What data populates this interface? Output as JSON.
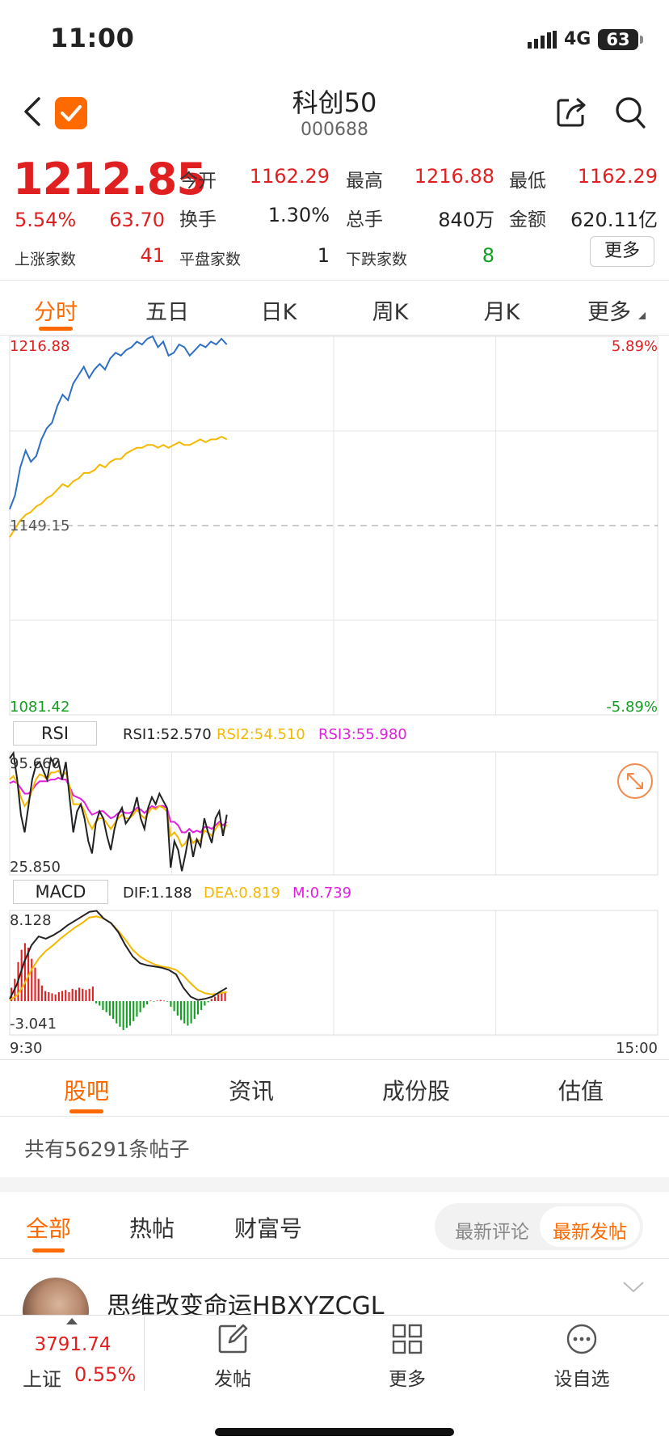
{
  "status": {
    "time": "11:00",
    "network": "4G",
    "battery": "63"
  },
  "header": {
    "title": "科创50",
    "code": "000688"
  },
  "quote": {
    "price": "1212.85",
    "change_pct": "5.54%",
    "change_abs": "63.70",
    "rows": [
      [
        {
          "label": "今开",
          "value": "1162.29",
          "color": "red"
        },
        {
          "label": "最高",
          "value": "1216.88",
          "color": "red"
        },
        {
          "label": "最低",
          "value": "1162.29",
          "color": "red"
        }
      ],
      [
        {
          "label": "换手",
          "value": "1.30%",
          "color": "dark"
        },
        {
          "label": "总手",
          "value": "840万",
          "color": "dark"
        },
        {
          "label": "金额",
          "value": "620.11亿",
          "color": "dark"
        }
      ]
    ],
    "breadth": [
      {
        "label": "上涨家数",
        "value": "41",
        "color": "red"
      },
      {
        "label": "平盘家数",
        "value": "1",
        "color": "dark"
      },
      {
        "label": "下跌家数",
        "value": "8",
        "color": "green"
      }
    ],
    "more_label": "更多"
  },
  "chart_tabs": [
    "分时",
    "五日",
    "日K",
    "周K",
    "月K",
    "更多"
  ],
  "colors": {
    "accent": "#ff6a00",
    "up": "#e02020",
    "down": "#12a020",
    "price_line": "#2f6fc4",
    "avg_line": "#f5b800",
    "rsi3": "#e020e0"
  },
  "chart_data": [
    {
      "type": "line",
      "name": "intraday",
      "y_top_label": "1216.88",
      "y_bottom_label": "1081.42",
      "pct_top_label": "5.89%",
      "pct_bottom_label": "-5.89%",
      "prev_close_label": "1149.15",
      "ylim": [
        1081.42,
        1216.88
      ],
      "prev_close": 1149.15,
      "x_start_label": "9:30",
      "x_end_label": "15:00",
      "series": [
        {
          "values": [
            1155,
            1160,
            1170,
            1176,
            1172,
            1174,
            1180,
            1184,
            1186,
            1192,
            1196,
            1194,
            1200,
            1203,
            1206,
            1202,
            1205,
            1207,
            1205,
            1209,
            1211,
            1210,
            1212,
            1213,
            1215,
            1214,
            1216,
            1216.88,
            1213,
            1215,
            1210,
            1211,
            1214,
            1213,
            1210,
            1212,
            1214,
            1213,
            1215,
            1214,
            1216,
            1214
          ]
        },
        {
          "values": [
            1145,
            1148,
            1151,
            1153,
            1154,
            1156,
            1157,
            1159,
            1160,
            1162,
            1164,
            1163,
            1165,
            1166,
            1168,
            1168,
            1169,
            1171,
            1170,
            1172,
            1173,
            1173,
            1175,
            1176,
            1177,
            1177,
            1178,
            1178,
            1177,
            1178,
            1177,
            1178,
            1179,
            1178,
            1178,
            1179,
            1180,
            1179,
            1180,
            1180,
            1181,
            1180
          ]
        }
      ],
      "x_total": 241
    },
    {
      "type": "line",
      "name": "RSI",
      "label": "RSI",
      "rsi1": "RSI1:52.570",
      "rsi2": "RSI2:54.510",
      "rsi3": "RSI3:55.980",
      "y_top_label": "95.660",
      "y_bottom_label": "25.850",
      "ylim": [
        25.85,
        95.66
      ],
      "x_total": 241,
      "series": [
        {
          "values": [
            92,
            95,
            80,
            60,
            50,
            65,
            80,
            88,
            90,
            85,
            80,
            92,
            88,
            91,
            80,
            90,
            70,
            50,
            62,
            66,
            58,
            45,
            38,
            55,
            62,
            58,
            48,
            40,
            52,
            60,
            64,
            55,
            58,
            62,
            70,
            58,
            52,
            64,
            70,
            66,
            72,
            68,
            64,
            30,
            45,
            40,
            28,
            38,
            50,
            36,
            46,
            42,
            58,
            50,
            44,
            58,
            62,
            48,
            60
          ]
        },
        {
          "values": [
            80,
            82,
            78,
            70,
            65,
            68,
            74,
            80,
            83,
            82,
            80,
            84,
            84,
            85,
            82,
            84,
            76,
            66,
            66,
            66,
            62,
            56,
            52,
            56,
            58,
            58,
            55,
            52,
            55,
            58,
            60,
            58,
            58,
            60,
            63,
            60,
            58,
            61,
            64,
            63,
            65,
            64,
            62,
            48,
            50,
            47,
            42,
            44,
            48,
            44,
            46,
            45,
            51,
            50,
            48,
            52,
            55,
            51,
            54.51
          ]
        },
        {
          "values": [
            78,
            79,
            78,
            75,
            72,
            72,
            74,
            77,
            79,
            79,
            79,
            80,
            80,
            81,
            80,
            80,
            76,
            71,
            70,
            69,
            67,
            63,
            60,
            61,
            62,
            62,
            60,
            58,
            59,
            61,
            62,
            61,
            61,
            62,
            64,
            63,
            61,
            63,
            65,
            64,
            65,
            65,
            64,
            56,
            56,
            54,
            50,
            50,
            52,
            50,
            51,
            50,
            53,
            53,
            52,
            54,
            56,
            54,
            55.98
          ]
        }
      ]
    },
    {
      "type": "bar",
      "name": "MACD",
      "label": "MACD",
      "dif": "DIF:1.188",
      "dea": "DEA:0.819",
      "m": "M:0.739",
      "y_top_label": "8.128",
      "y_bottom_label": "-3.041",
      "ylim": [
        -3.041,
        8.128
      ],
      "x_total": 241,
      "dif_values": [
        0.2,
        1.5,
        3.5,
        5.0,
        5.8,
        5.6,
        5.9,
        6.3,
        6.8,
        7.2,
        7.6,
        8.0,
        8.1,
        7.4,
        7.0,
        6.2,
        5.0,
        4.0,
        3.4,
        3.2,
        3.1,
        3.0,
        2.8,
        2.4,
        1.2,
        0.4,
        0.1,
        0.2,
        0.4,
        0.8,
        1.188
      ],
      "dea_values": [
        0.1,
        0.5,
        1.5,
        2.8,
        3.8,
        4.5,
        5.0,
        5.6,
        6.1,
        6.6,
        7.0,
        7.5,
        7.6,
        7.4,
        7.0,
        6.3,
        5.5,
        4.6,
        4.0,
        3.6,
        3.3,
        3.1,
        3.0,
        2.8,
        2.3,
        1.6,
        1.0,
        0.7,
        0.6,
        0.7,
        0.819
      ],
      "bars": [
        1.2,
        2.0,
        3.5,
        4.6,
        5.2,
        4.8,
        3.8,
        3.0,
        2.0,
        1.4,
        0.9,
        0.8,
        0.7,
        0.6,
        0.8,
        0.9,
        1.0,
        0.8,
        1.1,
        1.0,
        1.2,
        1.1,
        1.0,
        1.1,
        1.3,
        -0.2,
        -0.4,
        -0.8,
        -1.0,
        -1.3,
        -1.6,
        -2.0,
        -2.3,
        -2.6,
        -2.4,
        -2.2,
        -1.8,
        -1.4,
        -1.0,
        -0.6,
        -0.3,
        0.05,
        -0.05,
        0.05,
        0.1,
        0.05,
        -0.05,
        -0.5,
        -0.9,
        -1.3,
        -1.7,
        -2.0,
        -2.2,
        -2.0,
        -1.6,
        -1.2,
        -0.8,
        -0.4,
        -0.1,
        0.2,
        0.4,
        0.6,
        0.7,
        0.739
      ]
    }
  ],
  "sub_tabs": [
    "股吧",
    "资讯",
    "成份股",
    "估值"
  ],
  "post_count": "共有56291条帖子",
  "feed_tabs": [
    "全部",
    "热帖",
    "财富号"
  ],
  "sort": {
    "latest_comment": "最新评论",
    "latest_post": "最新发帖"
  },
  "first_post": {
    "author": "思维改变命运HBXYZCGL"
  },
  "bottom": {
    "index_value": "3791.74",
    "index_name": "上证",
    "index_pct": "0.55%",
    "items": [
      {
        "label": "发帖",
        "icon": "edit-icon"
      },
      {
        "label": "更多",
        "icon": "grid-icon"
      },
      {
        "label": "设自选",
        "icon": "more-dots-icon"
      }
    ]
  }
}
